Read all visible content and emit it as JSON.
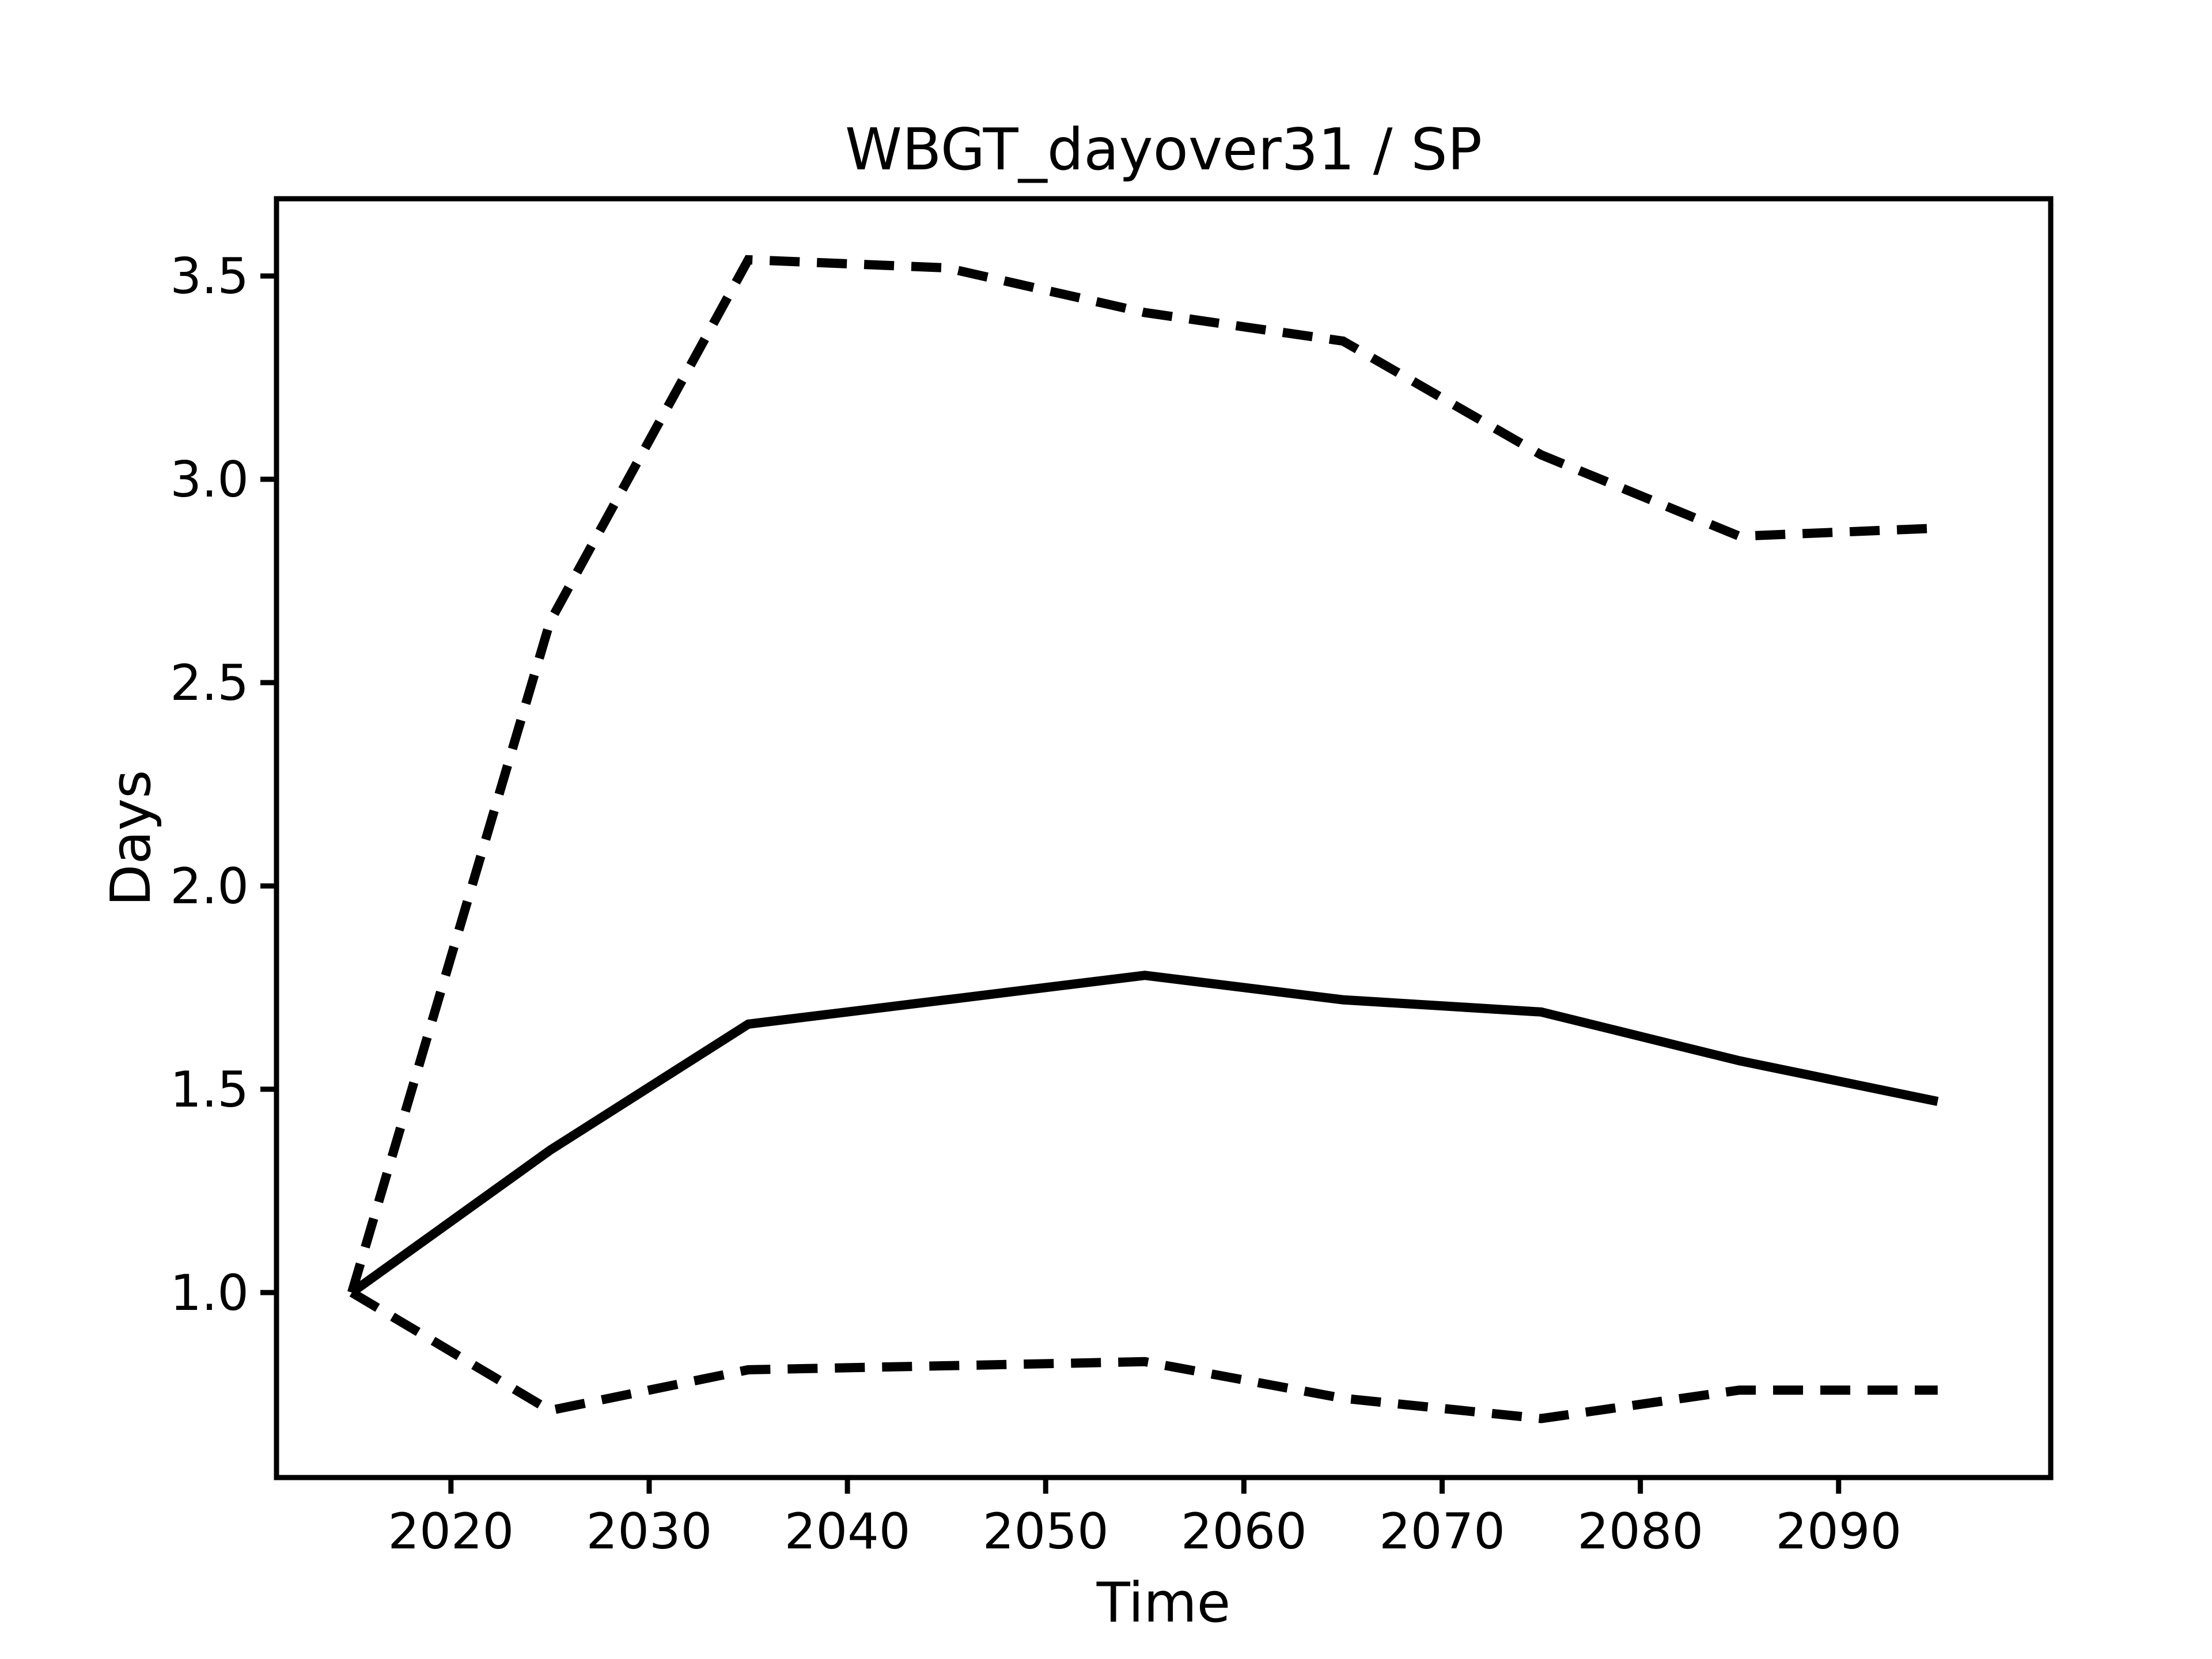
{
  "title": "WBGT_dayover31 / SP",
  "chart_data": {
    "type": "line",
    "title": "WBGT_dayover31 / SP",
    "xlabel": "Time",
    "ylabel": "Days",
    "x": [
      2015,
      2025,
      2035,
      2045,
      2055,
      2065,
      2075,
      2085,
      2095
    ],
    "series": [
      {
        "name": "upper-bound-dashed",
        "style": "dashed",
        "values": [
          1.0,
          2.65,
          3.54,
          3.52,
          3.41,
          3.34,
          3.06,
          2.86,
          2.88
        ]
      },
      {
        "name": "median-solid",
        "style": "solid",
        "values": [
          1.0,
          1.35,
          1.66,
          1.72,
          1.78,
          1.72,
          1.69,
          1.57,
          1.47
        ]
      },
      {
        "name": "lower-bound-dashed",
        "style": "dashed",
        "values": [
          1.0,
          0.71,
          0.81,
          0.82,
          0.83,
          0.74,
          0.69,
          0.76,
          0.76
        ]
      }
    ],
    "x_tick_values": [
      2020,
      2030,
      2040,
      2050,
      2060,
      2070,
      2080,
      2090
    ],
    "x_tick_labels": [
      "2020",
      "2030",
      "2040",
      "2050",
      "2060",
      "2070",
      "2080",
      "2090"
    ],
    "y_tick_values": [
      1.0,
      1.5,
      2.0,
      2.5,
      3.0,
      3.5
    ],
    "y_tick_labels": [
      "1.0",
      "1.5",
      "2.0",
      "2.5",
      "3.0",
      "3.5"
    ],
    "xlim": [
      2011.2,
      2100.7
    ],
    "ylim": [
      0.545,
      3.69
    ],
    "grid": false,
    "legend": null,
    "line_color": "#000000",
    "background_color": "#ffffff"
  }
}
